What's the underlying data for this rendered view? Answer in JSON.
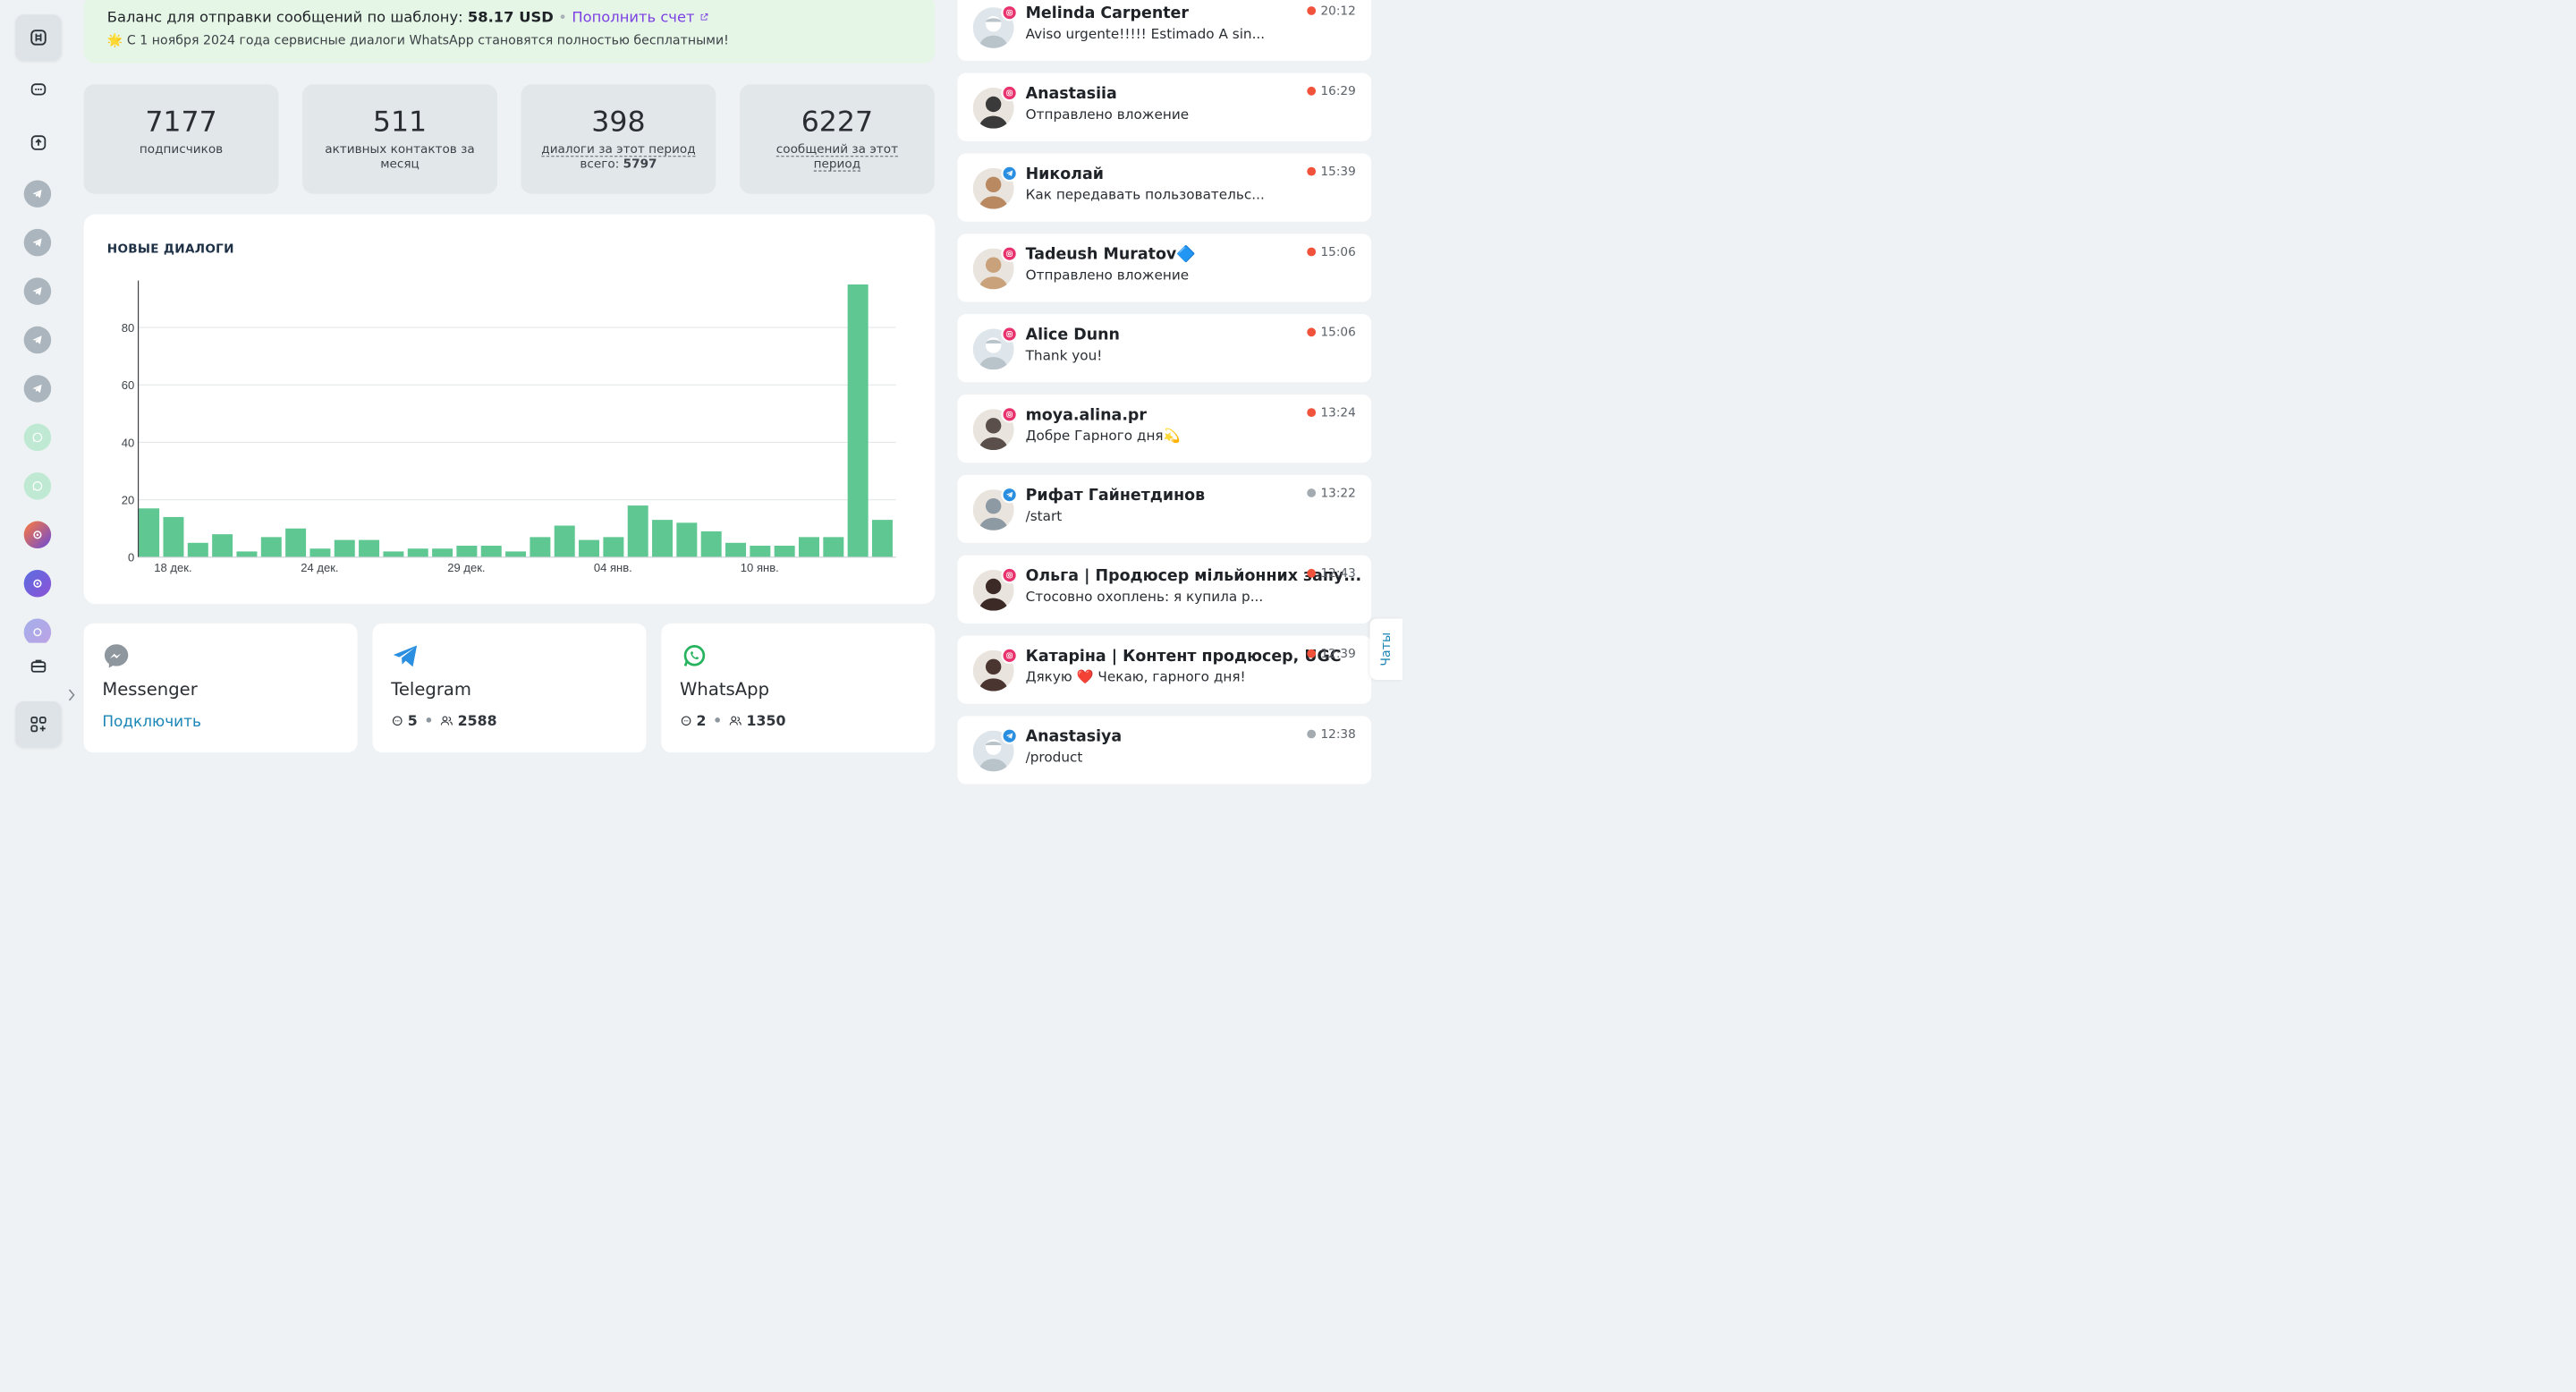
{
  "banner": {
    "balance_label": "Баланс для отправки сообщений по шаблону:",
    "balance_value": "58.17 USD",
    "topup_link": "Пополнить счет",
    "notice": "🌟 С 1 ноября 2024 года сервисные диалоги WhatsApp становятся полностью бесплатными!"
  },
  "stats": [
    {
      "value": "7177",
      "label": "подписчиков"
    },
    {
      "value": "511",
      "label": "активных контактов за месяц"
    },
    {
      "value": "398",
      "label_prefix": "диалоги за этот период",
      "label_total_text": "всего:",
      "label_total_value": "5797"
    },
    {
      "value": "6227",
      "label_a": "сообщений за этот",
      "label_b": "период"
    }
  ],
  "chart": {
    "title": "НОВЫЕ ДИАЛОГИ"
  },
  "chart_data": {
    "type": "bar",
    "title": "НОВЫЕ ДИАЛОГИ",
    "xlabel": "",
    "ylabel": "",
    "ylim": [
      0,
      95
    ],
    "yticks": [
      0,
      20,
      40,
      60,
      80
    ],
    "xtick_labels": [
      "18 дек.",
      "24 дек.",
      "29 дек.",
      "04 янв.",
      "10 янв."
    ],
    "xtick_index": [
      1,
      7,
      13,
      19,
      25
    ],
    "values": [
      17,
      14,
      5,
      8,
      2,
      7,
      10,
      3,
      6,
      6,
      2,
      3,
      3,
      4,
      4,
      2,
      7,
      11,
      6,
      7,
      18,
      13,
      12,
      9,
      5,
      4,
      4,
      7,
      7,
      95,
      13
    ],
    "color": "#5ec792",
    "grid": true
  },
  "channels": [
    {
      "name": "Messenger",
      "action": "Подключить"
    },
    {
      "name": "Telegram",
      "dialogs": "5",
      "contacts": "2588"
    },
    {
      "name": "WhatsApp",
      "dialogs": "2",
      "contacts": "1350"
    }
  ],
  "chats": [
    {
      "name": "Melinda Carpenter",
      "msg": "Aviso urgente!!!!! Estimado A sin...",
      "time": "20:12",
      "source": "instagram",
      "unread": true
    },
    {
      "name": "Anastasiia",
      "msg": "Отправлено вложение",
      "time": "16:29",
      "source": "instagram",
      "unread": true
    },
    {
      "name": "Николай",
      "msg": "Как передавать пользовательс...",
      "time": "15:39",
      "source": "telegram",
      "unread": true
    },
    {
      "name": "Tadeush Muratov🔷",
      "msg": "Отправлено вложение",
      "time": "15:06",
      "source": "instagram",
      "unread": true
    },
    {
      "name": "Alice Dunn",
      "msg": "Thank you!",
      "time": "15:06",
      "source": "instagram",
      "unread": true
    },
    {
      "name": "moya.alina.pr",
      "msg": "Добре Гарного дня💫",
      "time": "13:24",
      "source": "instagram",
      "unread": true
    },
    {
      "name": "Рифат Гайнетдинов",
      "msg": "/start",
      "time": "13:22",
      "source": "telegram",
      "unread": false
    },
    {
      "name": "Ольга | Продюсер мільйонних запу...",
      "msg": "Стосовно охоплень: я купила р...",
      "time": "12:43",
      "source": "instagram",
      "unread": true
    },
    {
      "name": "Катаріна | Контент продюсер, UGC",
      "msg": "Дякую ❤️ Чекаю, гарного дня!",
      "time": "12:39",
      "source": "instagram",
      "unread": true
    },
    {
      "name": "Anastasiya",
      "msg": "/product",
      "time": "12:38",
      "source": "telegram",
      "unread": false
    }
  ],
  "chats_tab": "Чаты",
  "colors": {
    "accent": "#1a86b5",
    "bar": "#5ec792",
    "banner_bg": "#e6f6e6",
    "link": "#7b3fe4",
    "unread": "#f0523b"
  }
}
